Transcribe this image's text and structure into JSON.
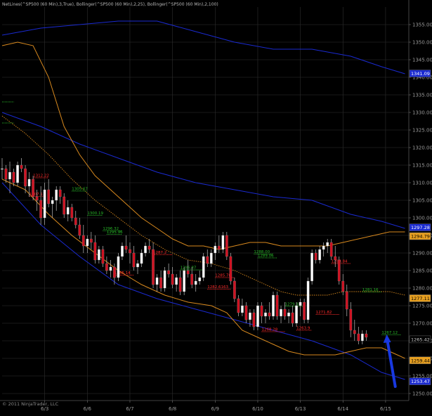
{
  "header": {
    "indicators": "NetLines(^SP500 (60 Min),3,True), Bollinger(^SP500 (60 Min),2,25), Bollinger(^SP500 (60 Min),2,100)"
  },
  "footer": {
    "copyright": "© 2011 NinjaTrader, LLC"
  },
  "colors": {
    "background": "#000000",
    "grid": "#2e2e2e",
    "bull": "#ffffff",
    "bear": "#d01020",
    "bb25": "#d8891e",
    "bb100": "#1a2ad0",
    "resistance": "#ff2a2a",
    "support": "#28b828",
    "arrow": "#1838e0"
  },
  "chart_data": {
    "type": "candlestick",
    "title": "",
    "ylim": [
      1248,
      1360
    ],
    "y_ticks": [
      1250,
      1255,
      1260,
      1265,
      1270,
      1275,
      1280,
      1285,
      1290,
      1295,
      1300,
      1305,
      1310,
      1315,
      1320,
      1325,
      1330,
      1335,
      1340,
      1345,
      1350,
      1355
    ],
    "y_tick_labels": [
      "1250.00",
      "1255.00",
      "1260.00",
      "1265.00",
      "1270.00",
      "1275.00",
      "1280.00",
      "1285.00",
      "1290.00",
      "1295.00",
      "1300.00",
      "1305.00",
      "1310.00",
      "1315.00",
      "1320.00",
      "1325.00",
      "1330.00",
      "1335.00",
      "1340.00",
      "1345.00",
      "1350.00",
      "1355.00"
    ],
    "x_range": [
      0,
      105
    ],
    "x_ticks": [
      {
        "x": 11,
        "label": "6/3"
      },
      {
        "x": 22,
        "label": "6/6"
      },
      {
        "x": 33,
        "label": "6/7"
      },
      {
        "x": 44,
        "label": "6/8"
      },
      {
        "x": 55,
        "label": "6/9"
      },
      {
        "x": 66,
        "label": "6/10"
      },
      {
        "x": 77,
        "label": "6/13"
      },
      {
        "x": 88,
        "label": "6/14"
      },
      {
        "x": 99,
        "label": "6/15"
      }
    ],
    "candles": [
      [
        0,
        1314,
        1317,
        1311,
        1314
      ],
      [
        1,
        1314,
        1315,
        1310,
        1311
      ],
      [
        2,
        1311,
        1316,
        1307,
        1313
      ],
      [
        3,
        1313,
        1314,
        1309,
        1310
      ],
      [
        4,
        1310,
        1316,
        1309,
        1315
      ],
      [
        5,
        1315,
        1317,
        1313,
        1314
      ],
      [
        6,
        1314,
        1315,
        1307,
        1309
      ],
      [
        7,
        1309,
        1313,
        1306,
        1311
      ],
      [
        8,
        1311,
        1312,
        1305,
        1306
      ],
      [
        9,
        1306,
        1308,
        1302,
        1305
      ],
      [
        10,
        1305,
        1309,
        1298,
        1300
      ],
      [
        11,
        1300,
        1310,
        1298,
        1308
      ],
      [
        12,
        1308,
        1311,
        1303,
        1304
      ],
      [
        13,
        1304,
        1306,
        1300,
        1305
      ],
      [
        14,
        1305,
        1309,
        1302,
        1308
      ],
      [
        15,
        1308,
        1309,
        1304,
        1306
      ],
      [
        16,
        1306,
        1307,
        1300,
        1301
      ],
      [
        17,
        1301,
        1305,
        1299,
        1303
      ],
      [
        18,
        1303,
        1304,
        1299,
        1300
      ],
      [
        19,
        1300,
        1302,
        1297,
        1298
      ],
      [
        20,
        1298,
        1300,
        1294,
        1295
      ],
      [
        21,
        1295,
        1298,
        1290,
        1292
      ],
      [
        22,
        1292,
        1295,
        1290,
        1294
      ],
      [
        23,
        1294,
        1296,
        1291,
        1293
      ],
      [
        24,
        1293,
        1295,
        1287,
        1288
      ],
      [
        25,
        1288,
        1292,
        1287,
        1291
      ],
      [
        26,
        1291,
        1292,
        1286,
        1287
      ],
      [
        27,
        1287,
        1289,
        1284,
        1285
      ],
      [
        28,
        1285,
        1288,
        1283,
        1286
      ],
      [
        29,
        1286,
        1287,
        1281,
        1283
      ],
      [
        30,
        1283,
        1290,
        1282,
        1289
      ],
      [
        31,
        1289,
        1293,
        1288,
        1292
      ],
      [
        32,
        1292,
        1295,
        1290,
        1291
      ],
      [
        33,
        1291,
        1293,
        1287,
        1290
      ],
      [
        34,
        1290,
        1292,
        1285,
        1286
      ],
      [
        35,
        1286,
        1288,
        1284,
        1287
      ],
      [
        36,
        1287,
        1291,
        1286,
        1290
      ],
      [
        37,
        1290,
        1293,
        1289,
        1292
      ],
      [
        38,
        1292,
        1294,
        1290,
        1291
      ],
      [
        39,
        1291,
        1293,
        1280,
        1281
      ],
      [
        40,
        1281,
        1284,
        1279,
        1283
      ],
      [
        41,
        1283,
        1285,
        1279,
        1280
      ],
      [
        42,
        1280,
        1286,
        1279,
        1285
      ],
      [
        43,
        1285,
        1287,
        1283,
        1284
      ],
      [
        44,
        1284,
        1286,
        1280,
        1281
      ],
      [
        45,
        1281,
        1284,
        1279,
        1283
      ],
      [
        46,
        1283,
        1285,
        1278,
        1279
      ],
      [
        47,
        1279,
        1286,
        1278,
        1285
      ],
      [
        48,
        1285,
        1288,
        1283,
        1284
      ],
      [
        49,
        1284,
        1286,
        1280,
        1281
      ],
      [
        50,
        1281,
        1284,
        1279,
        1282
      ],
      [
        51,
        1282,
        1285,
        1281,
        1283
      ],
      [
        52,
        1283,
        1290,
        1282,
        1289
      ],
      [
        53,
        1289,
        1291,
        1286,
        1287
      ],
      [
        54,
        1287,
        1291,
        1286,
        1290
      ],
      [
        55,
        1290,
        1293,
        1288,
        1292
      ],
      [
        56,
        1292,
        1295,
        1290,
        1291
      ],
      [
        57,
        1291,
        1296,
        1290,
        1295
      ],
      [
        58,
        1295,
        1296,
        1288,
        1289
      ],
      [
        59,
        1289,
        1290,
        1281,
        1282
      ],
      [
        60,
        1282,
        1283,
        1276,
        1277
      ],
      [
        61,
        1277,
        1278,
        1272,
        1273
      ],
      [
        62,
        1273,
        1277,
        1272,
        1275
      ],
      [
        63,
        1275,
        1276,
        1270,
        1271
      ],
      [
        64,
        1271,
        1274,
        1269,
        1273
      ],
      [
        65,
        1273,
        1274,
        1268,
        1269
      ],
      [
        66,
        1269,
        1276,
        1268,
        1275
      ],
      [
        67,
        1275,
        1276,
        1270,
        1272
      ],
      [
        68,
        1272,
        1274,
        1270,
        1273
      ],
      [
        69,
        1273,
        1276,
        1271,
        1272
      ],
      [
        70,
        1272,
        1279,
        1271,
        1278
      ],
      [
        71,
        1278,
        1279,
        1271,
        1272
      ],
      [
        72,
        1272,
        1275,
        1270,
        1274
      ],
      [
        73,
        1274,
        1276,
        1271,
        1272
      ],
      [
        74,
        1272,
        1274,
        1270,
        1273
      ],
      [
        75,
        1273,
        1275,
        1269,
        1270
      ],
      [
        76,
        1270,
        1276,
        1269,
        1275
      ],
      [
        77,
        1275,
        1277,
        1272,
        1276
      ],
      [
        78,
        1276,
        1277,
        1270,
        1271
      ],
      [
        79,
        1271,
        1283,
        1270,
        1282
      ],
      [
        80,
        1282,
        1291,
        1281,
        1290
      ],
      [
        81,
        1290,
        1291,
        1287,
        1288
      ],
      [
        82,
        1288,
        1292,
        1287,
        1291
      ],
      [
        83,
        1291,
        1293,
        1289,
        1292
      ],
      [
        84,
        1292,
        1294,
        1290,
        1293
      ],
      [
        85,
        1293,
        1294,
        1288,
        1289
      ],
      [
        86,
        1289,
        1292,
        1286,
        1288
      ],
      [
        87,
        1288,
        1289,
        1281,
        1282
      ],
      [
        88,
        1282,
        1284,
        1278,
        1279
      ],
      [
        89,
        1279,
        1281,
        1272,
        1274
      ],
      [
        90,
        1274,
        1276,
        1266,
        1268
      ],
      [
        91,
        1268,
        1271,
        1265,
        1267
      ],
      [
        92,
        1267,
        1269,
        1264,
        1265
      ],
      [
        93,
        1265,
        1268,
        1264,
        1267
      ],
      [
        94,
        1267,
        1268,
        1265,
        1266
      ]
    ],
    "bb25_upper": [
      [
        0,
        1349
      ],
      [
        4,
        1350
      ],
      [
        8,
        1349
      ],
      [
        12,
        1340
      ],
      [
        16,
        1326
      ],
      [
        20,
        1318
      ],
      [
        24,
        1312
      ],
      [
        28,
        1308
      ],
      [
        32,
        1304
      ],
      [
        36,
        1300
      ],
      [
        40,
        1297
      ],
      [
        44,
        1294
      ],
      [
        48,
        1292
      ],
      [
        52,
        1292
      ],
      [
        56,
        1291
      ],
      [
        60,
        1292
      ],
      [
        64,
        1293
      ],
      [
        68,
        1293
      ],
      [
        72,
        1292
      ],
      [
        76,
        1292
      ],
      [
        80,
        1292
      ],
      [
        84,
        1292
      ],
      [
        88,
        1293
      ],
      [
        92,
        1294
      ],
      [
        96,
        1295
      ],
      [
        100,
        1296
      ],
      [
        104,
        1296
      ]
    ],
    "bb25_mid": [
      [
        0,
        1329
      ],
      [
        6,
        1324
      ],
      [
        12,
        1318
      ],
      [
        18,
        1311
      ],
      [
        24,
        1305
      ],
      [
        30,
        1300
      ],
      [
        36,
        1295
      ],
      [
        42,
        1291
      ],
      [
        48,
        1288
      ],
      [
        54,
        1287
      ],
      [
        60,
        1285
      ],
      [
        64,
        1283
      ],
      [
        68,
        1281
      ],
      [
        72,
        1279
      ],
      [
        76,
        1278
      ],
      [
        80,
        1278
      ],
      [
        84,
        1278
      ],
      [
        88,
        1279
      ],
      [
        92,
        1279
      ],
      [
        96,
        1279
      ],
      [
        100,
        1279
      ],
      [
        104,
        1278
      ]
    ],
    "bb25_lower": [
      [
        0,
        1311
      ],
      [
        6,
        1308
      ],
      [
        12,
        1301
      ],
      [
        18,
        1295
      ],
      [
        24,
        1290
      ],
      [
        30,
        1285
      ],
      [
        36,
        1281
      ],
      [
        42,
        1278
      ],
      [
        48,
        1276
      ],
      [
        54,
        1275
      ],
      [
        58,
        1273
      ],
      [
        62,
        1268
      ],
      [
        66,
        1266
      ],
      [
        70,
        1264
      ],
      [
        74,
        1262
      ],
      [
        78,
        1261
      ],
      [
        82,
        1261
      ],
      [
        86,
        1261
      ],
      [
        90,
        1262
      ],
      [
        94,
        1263
      ],
      [
        98,
        1263
      ],
      [
        102,
        1261
      ],
      [
        104,
        1260
      ]
    ],
    "bb100_upper": [
      [
        0,
        1352
      ],
      [
        10,
        1354
      ],
      [
        20,
        1355
      ],
      [
        30,
        1356
      ],
      [
        40,
        1356
      ],
      [
        50,
        1353
      ],
      [
        60,
        1350
      ],
      [
        70,
        1348
      ],
      [
        80,
        1348
      ],
      [
        90,
        1346
      ],
      [
        98,
        1343
      ],
      [
        104,
        1341
      ]
    ],
    "bb100_mid": [
      [
        0,
        1330
      ],
      [
        10,
        1326
      ],
      [
        20,
        1321
      ],
      [
        30,
        1317
      ],
      [
        40,
        1313
      ],
      [
        50,
        1310
      ],
      [
        60,
        1308
      ],
      [
        70,
        1306
      ],
      [
        80,
        1305
      ],
      [
        90,
        1301
      ],
      [
        98,
        1299
      ],
      [
        104,
        1297
      ]
    ],
    "bb100_lower": [
      [
        0,
        1310
      ],
      [
        10,
        1298
      ],
      [
        20,
        1289
      ],
      [
        30,
        1281
      ],
      [
        40,
        1277
      ],
      [
        50,
        1274
      ],
      [
        60,
        1271
      ],
      [
        70,
        1268
      ],
      [
        80,
        1265
      ],
      [
        90,
        1261
      ],
      [
        98,
        1256
      ],
      [
        104,
        1254
      ]
    ],
    "support_levels": [
      {
        "x0": 0,
        "x1": 3,
        "y": 1333,
        "label": ""
      },
      {
        "x0": 0,
        "x1": 3,
        "y": 1327,
        "label": ""
      },
      {
        "x0": 18,
        "x1": 22,
        "y": 1307.6,
        "label": "1305.67"
      },
      {
        "x0": 22,
        "x1": 26,
        "y": 1300.7,
        "label": "1300.19"
      },
      {
        "x0": 26,
        "x1": 31,
        "y": 1296.3,
        "label": "1296.32"
      },
      {
        "x0": 27,
        "x1": 31,
        "y": 1295.3,
        "label": "1295.96"
      },
      {
        "x0": 65,
        "x1": 70,
        "y": 1289.7,
        "label": "1288.00"
      },
      {
        "x0": 66,
        "x1": 71,
        "y": 1288.6,
        "label": "1289.06"
      },
      {
        "x0": 46,
        "x1": 52,
        "y": 1285.2,
        "label": "1286.87"
      },
      {
        "x0": 73,
        "x1": 78,
        "y": 1274.8,
        "label": "1279.92"
      },
      {
        "x0": 93,
        "x1": 98,
        "y": 1278.9,
        "label": "1281.16"
      },
      {
        "x0": 98,
        "x1": 103,
        "y": 1266.7,
        "label": "1267.12"
      }
    ],
    "resistance_levels": [
      {
        "x0": 8,
        "x1": 12,
        "y": 1311.4,
        "label": "1312.22"
      },
      {
        "x0": 7,
        "x1": 11,
        "y": 1306.1,
        "label": "1307.13"
      },
      {
        "x0": 39,
        "x1": 44,
        "y": 1289.5,
        "label": "1287.2"
      },
      {
        "x0": 29,
        "x1": 34,
        "y": 1283.7,
        "label": "1285.14"
      },
      {
        "x0": 55,
        "x1": 60,
        "y": 1283.0,
        "label": "1285.78"
      },
      {
        "x0": 53,
        "x1": 59,
        "y": 1279.7,
        "label": "1282.6163"
      },
      {
        "x0": 85,
        "x1": 90,
        "y": 1287.0,
        "label": "1288.84"
      },
      {
        "x0": 81,
        "x1": 87,
        "y": 1272.5,
        "label": "1271.82"
      },
      {
        "x0": 67,
        "x1": 73,
        "y": 1267.6,
        "label": "1268.28"
      },
      {
        "x0": 76,
        "x1": 80,
        "y": 1268.0,
        "label": "1263.9"
      }
    ],
    "price_tags": [
      {
        "value": 1341.09,
        "label": "1341.09",
        "bg": "#1a2ad0",
        "fg": "#ffffff"
      },
      {
        "value": 1297.28,
        "label": "1297.28",
        "bg": "#1a2ad0",
        "fg": "#ffffff"
      },
      {
        "value": 1294.79,
        "label": "1294.79",
        "bg": "#e8a020",
        "fg": "#000000"
      },
      {
        "value": 1277.11,
        "label": "1277.11",
        "bg": "#e8a020",
        "fg": "#000000"
      },
      {
        "value": 1265.42,
        "label": "1265.42",
        "bg": "#000000",
        "fg": "#cccccc"
      },
      {
        "value": 1259.44,
        "label": "1259.44",
        "bg": "#e8a020",
        "fg": "#000000"
      },
      {
        "value": 1253.47,
        "label": "1253.47",
        "bg": "#1a2ad0",
        "fg": "#ffffff"
      }
    ],
    "arrow": {
      "x_from": 99.5,
      "y_from": 1266,
      "x_to": 101.5,
      "y_to": 1252
    }
  }
}
